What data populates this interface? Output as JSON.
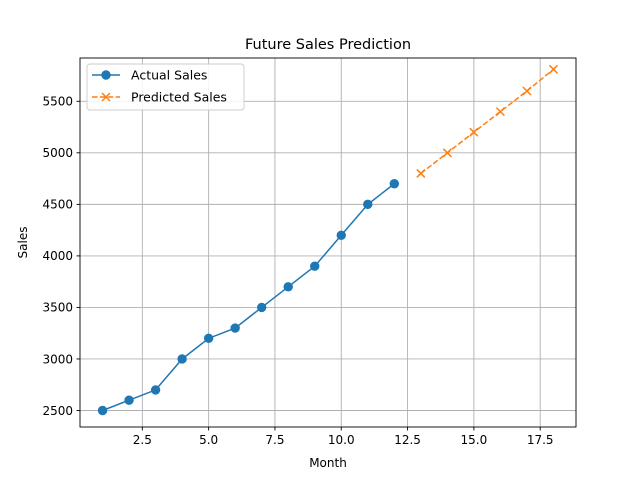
{
  "chart_data": {
    "type": "line",
    "title": "Future Sales Prediction",
    "xlabel": "Month",
    "ylabel": "Sales",
    "xlim": [
      0.15,
      18.85
    ],
    "ylim": [
      2340,
      5920
    ],
    "xticks": [
      2.5,
      5.0,
      7.5,
      10.0,
      12.5,
      15.0,
      17.5
    ],
    "xtick_labels": [
      "2.5",
      "5.0",
      "7.5",
      "10.0",
      "12.5",
      "15.0",
      "17.5"
    ],
    "yticks": [
      2500,
      3000,
      3500,
      4000,
      4500,
      5000,
      5500
    ],
    "ytick_labels": [
      "2500",
      "3000",
      "3500",
      "4000",
      "4500",
      "5000",
      "5500"
    ],
    "grid": true,
    "legend_position": "top-left",
    "series": [
      {
        "name": "Actual Sales",
        "color": "#1f77b4",
        "linestyle": "solid",
        "marker": "circle",
        "x": [
          1,
          2,
          3,
          4,
          5,
          6,
          7,
          8,
          9,
          10,
          11,
          12
        ],
        "y": [
          2500,
          2600,
          2700,
          3000,
          3200,
          3300,
          3500,
          3700,
          3900,
          4200,
          4500,
          4700
        ]
      },
      {
        "name": "Predicted Sales",
        "color": "#ff7f0e",
        "linestyle": "dashed",
        "marker": "x",
        "x": [
          13,
          14,
          15,
          16,
          17,
          18
        ],
        "y": [
          4800,
          5000,
          5200,
          5400,
          5600,
          5810
        ]
      }
    ]
  }
}
